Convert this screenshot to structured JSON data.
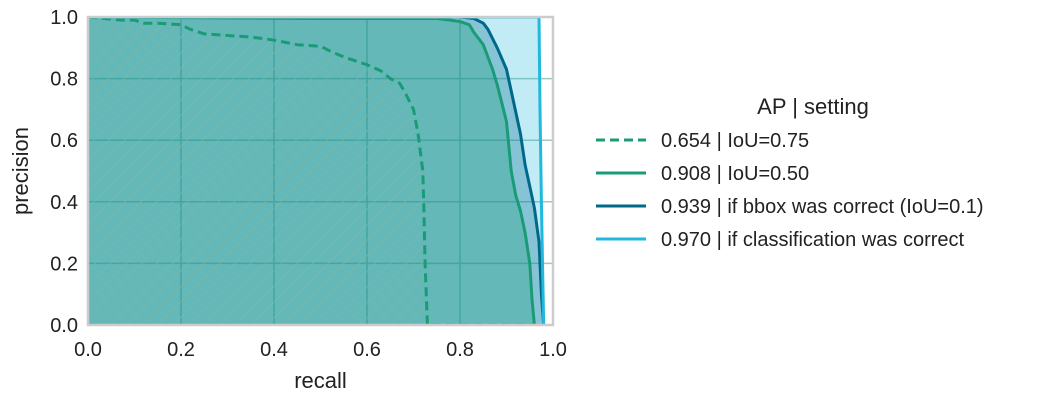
{
  "chart_data": {
    "type": "line",
    "xlabel": "recall",
    "ylabel": "precision",
    "xlim": [
      0.0,
      1.0
    ],
    "ylim": [
      0.0,
      1.0
    ],
    "xticks": [
      "0.0",
      "0.2",
      "0.4",
      "0.6",
      "0.8",
      "1.0"
    ],
    "yticks": [
      "0.0",
      "0.2",
      "0.4",
      "0.6",
      "0.8",
      "1.0"
    ],
    "grid": true,
    "legend": {
      "title": "AP | setting",
      "placement": "right"
    },
    "series": [
      {
        "name": "0.654 | IoU=0.75",
        "color": "#1a9b78",
        "style": "dashed",
        "fill": "hatched",
        "x": [
          0.0,
          0.07,
          0.1,
          0.12,
          0.15,
          0.2,
          0.22,
          0.25,
          0.3,
          0.35,
          0.4,
          0.45,
          0.5,
          0.52,
          0.55,
          0.58,
          0.6,
          0.63,
          0.65,
          0.67,
          0.68,
          0.7,
          0.71,
          0.72,
          0.722,
          0.725,
          0.73,
          0.8,
          0.9,
          0.95,
          0.96
        ],
        "y": [
          1.0,
          0.99,
          0.99,
          0.98,
          0.98,
          0.975,
          0.96,
          0.945,
          0.94,
          0.935,
          0.925,
          0.91,
          0.905,
          0.89,
          0.87,
          0.855,
          0.845,
          0.825,
          0.8,
          0.785,
          0.76,
          0.7,
          0.62,
          0.5,
          0.4,
          0.2,
          0.0,
          0.0,
          0.0,
          0.0,
          0.0
        ]
      },
      {
        "name": "0.908 | IoU=0.50",
        "color": "#1a9b78",
        "style": "solid",
        "fill": "solid",
        "x": [
          0.0,
          0.5,
          0.7,
          0.75,
          0.78,
          0.8,
          0.82,
          0.83,
          0.85,
          0.86,
          0.87,
          0.88,
          0.89,
          0.9,
          0.91,
          0.92,
          0.93,
          0.94,
          0.95,
          0.955,
          0.96
        ],
        "y": [
          1.0,
          0.995,
          0.995,
          0.995,
          0.99,
          0.985,
          0.975,
          0.95,
          0.91,
          0.87,
          0.83,
          0.78,
          0.72,
          0.66,
          0.5,
          0.42,
          0.37,
          0.3,
          0.2,
          0.08,
          0.0
        ]
      },
      {
        "name": "0.939 | if bbox was correct (IoU=0.1)",
        "color": "#00698a",
        "style": "solid",
        "fill": "solid",
        "x": [
          0.0,
          0.8,
          0.83,
          0.85,
          0.86,
          0.88,
          0.9,
          0.91,
          0.93,
          0.94,
          0.95,
          0.96,
          0.97,
          0.975,
          0.98
        ],
        "y": [
          1.0,
          1.0,
          0.995,
          0.98,
          0.96,
          0.9,
          0.83,
          0.76,
          0.62,
          0.52,
          0.45,
          0.38,
          0.27,
          0.1,
          0.0
        ]
      },
      {
        "name": "0.970 | if classification was correct",
        "color": "#22b8dc",
        "style": "solid",
        "fill": "solid",
        "x": [
          0.0,
          0.97,
          0.972,
          0.975,
          0.978,
          0.98
        ],
        "y": [
          1.0,
          1.0,
          0.7,
          0.4,
          0.15,
          0.0
        ]
      }
    ]
  }
}
